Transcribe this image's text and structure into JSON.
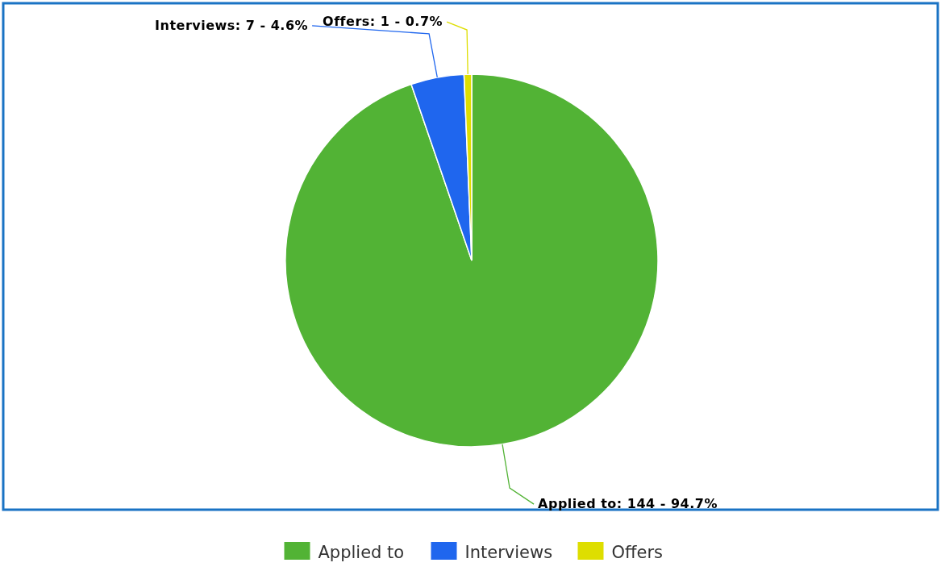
{
  "chart_data": {
    "type": "pie",
    "categories": [
      "Applied to",
      "Interviews",
      "Offers"
    ],
    "values": [
      144,
      7,
      1
    ],
    "colors": [
      "#52b335",
      "#1f66ee",
      "#dede00"
    ],
    "value_labels": [
      "Applied to: 144 - 94.7%",
      "Interviews: 7 - 4.6%",
      "Offers: 1 - 0.7%"
    ],
    "legend": "bottom"
  }
}
